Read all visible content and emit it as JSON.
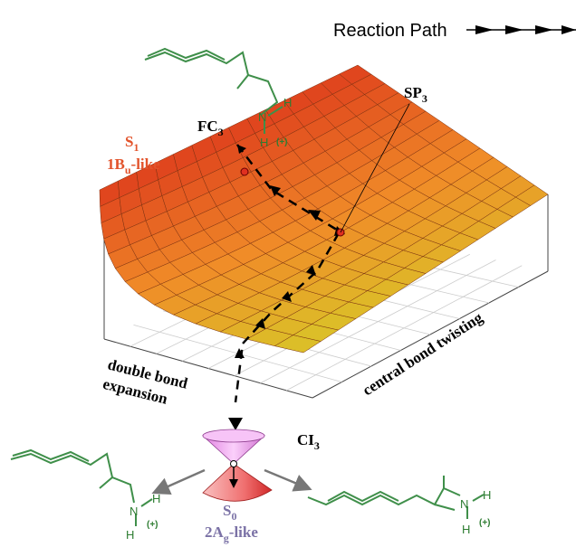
{
  "reaction_path": "Reaction Path",
  "s1": {
    "symbol": "S",
    "sub": "1",
    "character": "1B",
    "character_sub": "u",
    "character_post": "-like"
  },
  "fc": {
    "symbol": "FC",
    "sub": "3"
  },
  "sp": {
    "symbol": "SP",
    "sub": "3"
  },
  "ci": {
    "symbol": "CI",
    "sub": "3"
  },
  "s0": {
    "symbol": "S",
    "sub": "0",
    "character": "2A",
    "character_sub": "g",
    "character_post": "-like"
  },
  "axes": {
    "u": [
      "double bond",
      "expansion"
    ],
    "v": "central bond twisting"
  },
  "molecules": [
    {
      "atoms": [
        "N",
        "H",
        "H",
        "(+)"
      ]
    },
    {
      "atoms": [
        "N",
        "H",
        "H",
        "(+)"
      ]
    },
    {
      "atoms": [
        "N",
        "H",
        "H",
        "(+)"
      ]
    }
  ]
}
